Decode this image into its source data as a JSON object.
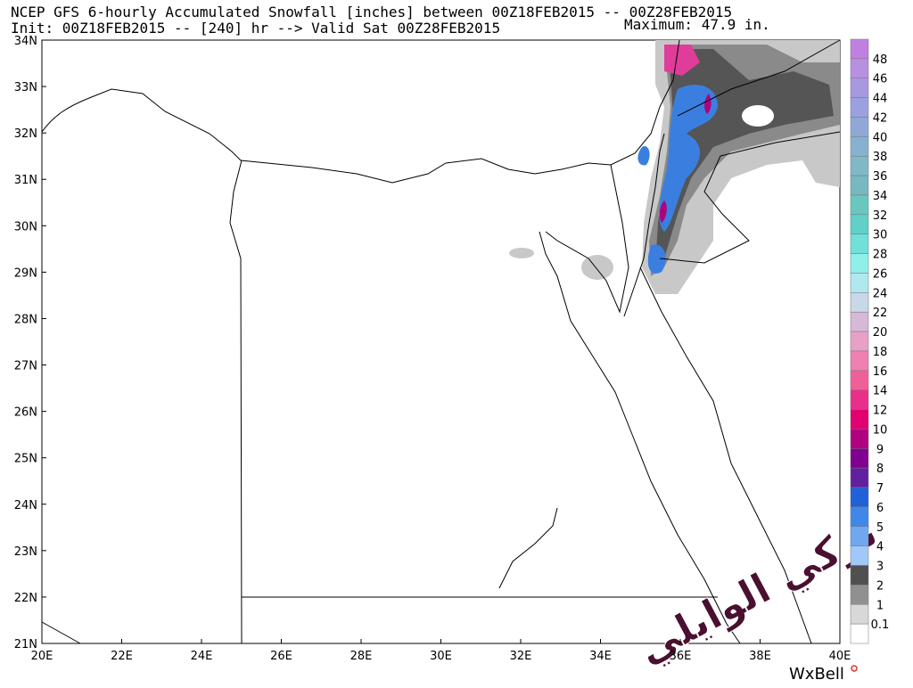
{
  "header": {
    "line1": "NCEP GFS 6-hourly Accumulated Snowfall [inches] between 00Z18FEB2015 -- 00Z28FEB2015",
    "line2": "Init: 00Z18FEB2015 -- [240] hr --> Valid Sat 00Z28FEB2015",
    "maximum": "Maximum:  47.9 in."
  },
  "map": {
    "lat_labels": [
      "34N",
      "33N",
      "32N",
      "31N",
      "30N",
      "29N",
      "28N",
      "27N",
      "26N",
      "25N",
      "24N",
      "23N",
      "22N",
      "21N"
    ],
    "lon_labels": [
      "20E",
      "22E",
      "24E",
      "26E",
      "28E",
      "30E",
      "32E",
      "34E",
      "36E",
      "38E",
      "40E"
    ]
  },
  "colorbar": {
    "labels": [
      "48",
      "46",
      "44",
      "42",
      "40",
      "38",
      "36",
      "34",
      "32",
      "30",
      "28",
      "26",
      "24",
      "22",
      "20",
      "18",
      "16",
      "14",
      "12",
      "10",
      "9",
      "8",
      "7",
      "6",
      "5",
      "4",
      "3",
      "2",
      "1",
      "0.1"
    ]
  },
  "credit": "WxBell",
  "watermark": "تركي الوايلي"
}
